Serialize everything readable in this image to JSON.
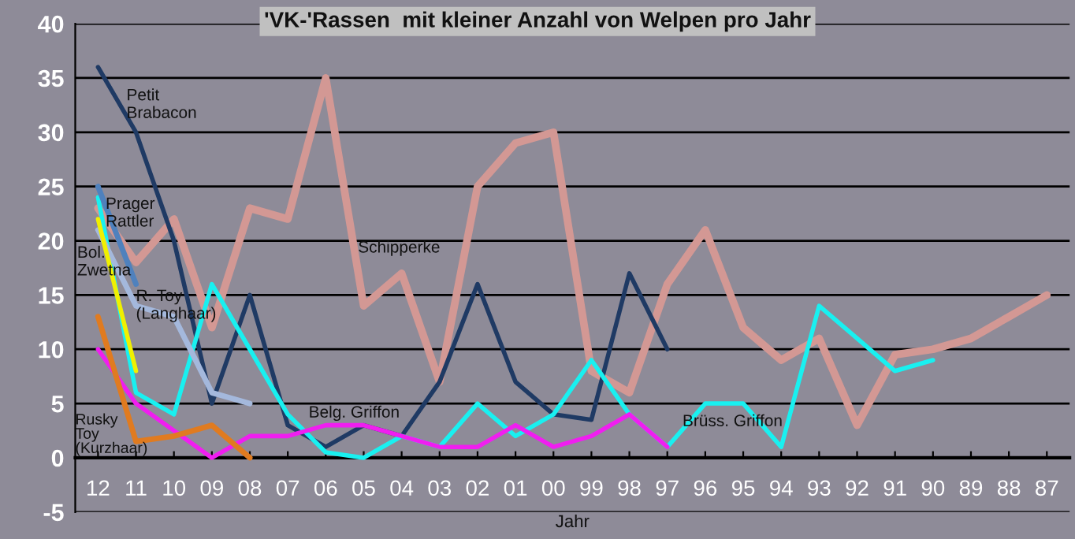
{
  "chart_data": {
    "type": "line",
    "title": "'VK-'Rassen  mit kleiner Anzahl von Welpen pro Jahr",
    "xlabel": "Jahr",
    "categories": [
      "12",
      "11",
      "10",
      "09",
      "08",
      "07",
      "06",
      "05",
      "04",
      "03",
      "02",
      "01",
      "00",
      "99",
      "98",
      "97",
      "96",
      "95",
      "94",
      "93",
      "92",
      "91",
      "90",
      "89",
      "88",
      "87"
    ],
    "ylim": [
      -5,
      40
    ],
    "yticks": [
      -5,
      0,
      5,
      10,
      15,
      20,
      25,
      30,
      35,
      40
    ],
    "grid": "y",
    "legend": false,
    "line_style": "solid",
    "marker": "none",
    "series": [
      {
        "name": "Schipperke",
        "color": "#d39894",
        "values": [
          23,
          18,
          22,
          12,
          23,
          22,
          35,
          14,
          17,
          7,
          25,
          29,
          30,
          8,
          6,
          16,
          21,
          12,
          9,
          11,
          3,
          9.5,
          10,
          11,
          13,
          15
        ]
      },
      {
        "name": "Petit\nBrabacon",
        "color": "#1f3a64",
        "values": [
          36,
          30,
          20,
          5,
          15,
          3,
          1,
          3,
          2,
          7,
          16,
          7,
          4,
          3.5,
          17,
          10,
          null,
          null,
          null,
          null,
          null,
          null,
          null,
          null,
          null,
          null
        ]
      },
      {
        "name": "Brüss. Griffon",
        "color": "#19f0f0",
        "values": [
          24,
          6,
          4,
          16,
          10,
          4,
          0.5,
          0,
          2,
          1,
          5,
          2,
          4,
          9,
          4,
          1,
          5,
          5,
          1,
          14,
          11,
          8,
          9,
          null,
          null,
          null
        ]
      },
      {
        "name": "Belg. Griffon",
        "color": "#f01ef0",
        "values": [
          10,
          5,
          2.5,
          0,
          2,
          2,
          3,
          3,
          2,
          1,
          1,
          3,
          1,
          2,
          4,
          1,
          null,
          null,
          null,
          null,
          null,
          null,
          null,
          null,
          null,
          null
        ]
      },
      {
        "name": "R. Toy\n(Langhaar)",
        "color": "#a4b8dc",
        "values": [
          21,
          14,
          13,
          6,
          5,
          null,
          null,
          null,
          null,
          null,
          null,
          null,
          null,
          null,
          null,
          null,
          null,
          null,
          null,
          null,
          null,
          null,
          null,
          null,
          null,
          null
        ]
      },
      {
        "name": "Prager\nRattler",
        "color": "#4f81bd",
        "values": [
          25,
          16,
          null,
          null,
          null,
          null,
          null,
          null,
          null,
          null,
          null,
          null,
          null,
          null,
          null,
          null,
          null,
          null,
          null,
          null,
          null,
          null,
          null,
          null,
          null,
          null
        ]
      },
      {
        "name": "Bol.\nZwetna",
        "color": "#f0f000",
        "values": [
          22,
          8,
          null,
          null,
          null,
          null,
          null,
          null,
          null,
          null,
          null,
          null,
          null,
          null,
          null,
          null,
          null,
          null,
          null,
          null,
          null,
          null,
          null,
          null,
          null,
          null
        ]
      },
      {
        "name": "Rusky\nToy\n(Kurzhaar)",
        "color": "#e07b20",
        "values": [
          13,
          1.5,
          2,
          3,
          0,
          null,
          null,
          null,
          null,
          null,
          null,
          null,
          null,
          null,
          null,
          null,
          null,
          null,
          null,
          null,
          null,
          null,
          null,
          null,
          null,
          null
        ]
      }
    ]
  }
}
